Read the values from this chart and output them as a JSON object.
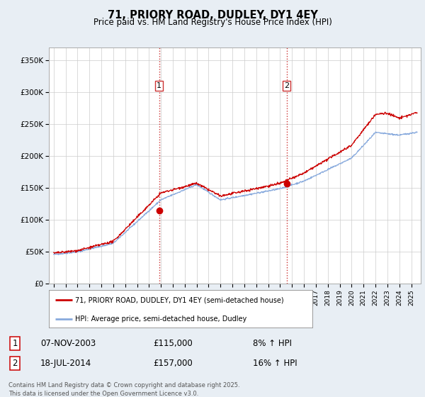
{
  "title": "71, PRIORY ROAD, DUDLEY, DY1 4EY",
  "subtitle": "Price paid vs. HM Land Registry's House Price Index (HPI)",
  "ylabel_ticks": [
    "£0",
    "£50K",
    "£100K",
    "£150K",
    "£200K",
    "£250K",
    "£300K",
    "£350K"
  ],
  "ytick_values": [
    0,
    50000,
    100000,
    150000,
    200000,
    250000,
    300000,
    350000
  ],
  "ylim": [
    0,
    370000
  ],
  "xlim_start": 1994.6,
  "xlim_end": 2025.8,
  "line_color_property": "#cc0000",
  "line_color_hpi": "#88aadd",
  "purchase1_x": 2003.855,
  "purchase1_y": 115000,
  "purchase2_x": 2014.54,
  "purchase2_y": 157000,
  "vline_color": "#cc3333",
  "marker_color": "#cc0000",
  "legend_property": "71, PRIORY ROAD, DUDLEY, DY1 4EY (semi-detached house)",
  "legend_hpi": "HPI: Average price, semi-detached house, Dudley",
  "annotation1_label": "1",
  "annotation2_label": "2",
  "table_row1": [
    "1",
    "07-NOV-2003",
    "£115,000",
    "8% ↑ HPI"
  ],
  "table_row2": [
    "2",
    "18-JUL-2014",
    "£157,000",
    "16% ↑ HPI"
  ],
  "footer": "Contains HM Land Registry data © Crown copyright and database right 2025.\nThis data is licensed under the Open Government Licence v3.0.",
  "bg_color": "#e8eef4",
  "plot_bg_color": "#ffffff",
  "grid_color": "#cccccc"
}
